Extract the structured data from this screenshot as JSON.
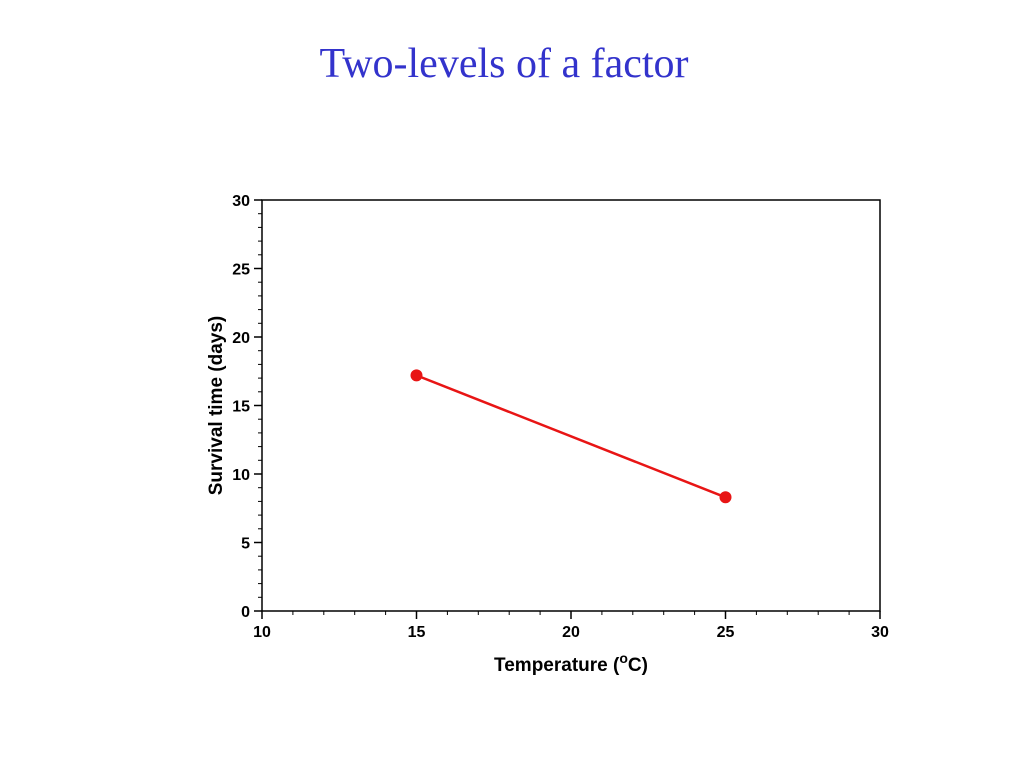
{
  "slide": {
    "title": "Two-levels of a factor"
  },
  "colors": {
    "title": "#3333cc",
    "series": "#e81515",
    "axis": "#000000"
  },
  "chart_data": {
    "type": "line",
    "x": [
      15,
      25
    ],
    "series": [
      {
        "values": [
          17.2,
          8.3
        ]
      }
    ],
    "xlabel": "Temperature (",
    "xlabel_superscript": "o",
    "xlabel_unit": "C)",
    "ylabel": "Survival time (days)",
    "xlim": [
      10,
      30
    ],
    "ylim": [
      0,
      30
    ],
    "xticks": [
      10,
      15,
      20,
      25,
      30
    ],
    "yticks": [
      0,
      5,
      10,
      15,
      20,
      25,
      30
    ],
    "xminor_step": 1,
    "yminor_step": 1,
    "grid": false,
    "legend": "none"
  }
}
